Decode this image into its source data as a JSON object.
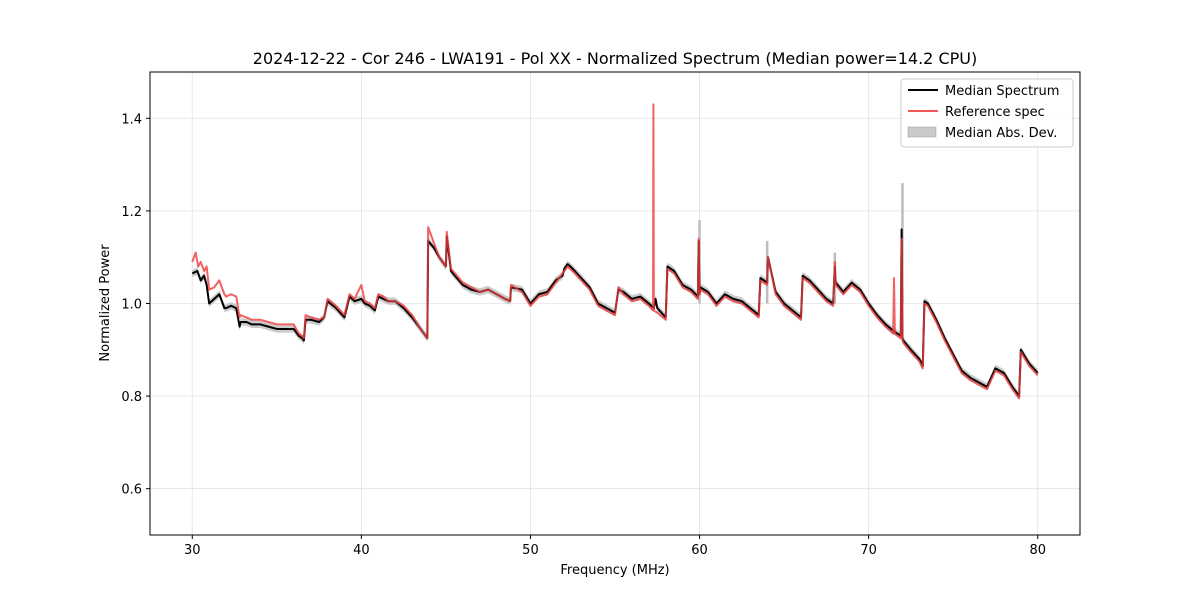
{
  "chart_data": {
    "type": "line",
    "title": "2024-12-22 - Cor 246 - LWA191 - Pol XX - Normalized Spectrum (Median power=14.2 CPU)",
    "xlabel": "Frequency (MHz)",
    "ylabel": "Normalized Power",
    "xlim": [
      27.5,
      82.5
    ],
    "ylim": [
      0.5,
      1.5
    ],
    "xticks": [
      30,
      40,
      50,
      60,
      70,
      80
    ],
    "yticks": [
      0.6,
      0.8,
      1.0,
      1.2,
      1.4
    ],
    "xtick_labels": [
      "30",
      "40",
      "50",
      "60",
      "70",
      "80"
    ],
    "ytick_labels": [
      "0.6",
      "0.8",
      "1.0",
      "1.2",
      "1.4"
    ],
    "grid": true,
    "legend_position": "top-right",
    "colors": {
      "median": "#000000",
      "reference": "#ee3b3b",
      "mad": "#bdbdbd",
      "overlap": "#8b0000"
    },
    "series": [
      {
        "name": "Median Spectrum",
        "legend": "Median Spectrum",
        "x": [
          30.0,
          30.3,
          30.5,
          30.7,
          30.85,
          31.0,
          31.3,
          31.6,
          31.9,
          32.0,
          32.3,
          32.6,
          32.8,
          32.85,
          33.2,
          33.5,
          34.0,
          34.5,
          35.0,
          35.5,
          35.9,
          36.0,
          36.3,
          36.5,
          36.6,
          36.7,
          37.0,
          37.5,
          37.8,
          38.0,
          38.5,
          39.0,
          39.3,
          39.6,
          40.0,
          40.2,
          40.5,
          40.8,
          41.0,
          41.3,
          41.6,
          42.0,
          42.5,
          43.0,
          43.5,
          43.9,
          43.95,
          44.3,
          44.6,
          45.0,
          45.05,
          45.3,
          46.0,
          46.5,
          47.0,
          47.5,
          48.0,
          48.5,
          48.8,
          48.85,
          49.5,
          50.0,
          50.5,
          51.0,
          51.5,
          51.9,
          52.0,
          52.2,
          52.5,
          53.0,
          53.5,
          54.0,
          54.5,
          55.0,
          55.2,
          55.5,
          56.0,
          56.5,
          57.0,
          57.3,
          57.4,
          57.5,
          58.0,
          58.1,
          58.5,
          59.0,
          59.5,
          59.9,
          59.95,
          60.0,
          60.05,
          60.5,
          61.0,
          61.5,
          62.0,
          62.5,
          63.0,
          63.5,
          63.6,
          64.0,
          64.05,
          64.5,
          65.0,
          65.5,
          66.0,
          66.1,
          66.5,
          67.0,
          67.5,
          67.9,
          68.0,
          68.05,
          68.5,
          69.0,
          69.5,
          70.0,
          70.5,
          71.0,
          71.5,
          71.9,
          71.95,
          72.0,
          72.05,
          72.5,
          73.0,
          73.2,
          73.3,
          73.5,
          74.0,
          74.5,
          75.0,
          75.5,
          76.0,
          76.5,
          77.0,
          77.5,
          78.0,
          78.5,
          78.9,
          79.0,
          79.5,
          80.0
        ],
        "values": [
          1.065,
          1.07,
          1.05,
          1.06,
          1.04,
          1.0,
          1.01,
          1.02,
          0.99,
          0.99,
          0.995,
          0.99,
          0.95,
          0.96,
          0.96,
          0.955,
          0.955,
          0.95,
          0.945,
          0.945,
          0.945,
          0.945,
          0.93,
          0.925,
          0.92,
          0.965,
          0.965,
          0.96,
          0.97,
          1.005,
          0.99,
          0.97,
          1.015,
          1.005,
          1.01,
          1.0,
          0.995,
          0.985,
          1.015,
          1.01,
          1.005,
          1.005,
          0.99,
          0.97,
          0.945,
          0.925,
          1.135,
          1.12,
          1.1,
          1.08,
          1.145,
          1.07,
          1.04,
          1.03,
          1.025,
          1.03,
          1.02,
          1.01,
          1.005,
          1.035,
          1.03,
          1.0,
          1.02,
          1.025,
          1.05,
          1.06,
          1.075,
          1.085,
          1.075,
          1.055,
          1.035,
          1.0,
          0.99,
          0.98,
          1.03,
          1.025,
          1.01,
          1.015,
          1.0,
          0.99,
          1.01,
          0.99,
          0.97,
          1.08,
          1.07,
          1.04,
          1.03,
          1.015,
          1.135,
          1.02,
          1.035,
          1.025,
          1.0,
          1.02,
          1.01,
          1.005,
          0.99,
          0.975,
          1.055,
          1.045,
          1.1,
          1.025,
          1.0,
          0.985,
          0.97,
          1.06,
          1.05,
          1.03,
          1.01,
          1.0,
          1.08,
          1.045,
          1.025,
          1.045,
          1.03,
          1.0,
          0.975,
          0.955,
          0.94,
          0.93,
          1.16,
          0.925,
          0.92,
          0.9,
          0.88,
          0.865,
          1.005,
          1.0,
          0.965,
          0.925,
          0.89,
          0.855,
          0.84,
          0.83,
          0.82,
          0.86,
          0.85,
          0.82,
          0.8,
          0.9,
          0.87,
          0.85
        ]
      },
      {
        "name": "Reference spec",
        "legend": "Reference spec",
        "x": [
          30.0,
          30.2,
          30.35,
          30.5,
          30.7,
          30.85,
          31.0,
          31.3,
          31.6,
          31.9,
          32.0,
          32.3,
          32.6,
          32.8,
          32.85,
          33.2,
          33.5,
          34.0,
          34.5,
          35.0,
          35.5,
          35.9,
          36.0,
          36.3,
          36.5,
          36.6,
          36.7,
          37.0,
          37.5,
          37.8,
          38.0,
          38.5,
          39.0,
          39.3,
          39.6,
          40.0,
          40.2,
          40.5,
          40.8,
          41.0,
          41.3,
          41.6,
          42.0,
          42.5,
          43.0,
          43.5,
          43.9,
          43.95,
          44.3,
          44.6,
          45.0,
          45.05,
          45.3,
          46.0,
          46.5,
          47.0,
          47.5,
          48.0,
          48.5,
          48.8,
          48.85,
          49.5,
          50.0,
          50.5,
          51.0,
          51.5,
          51.9,
          52.0,
          52.2,
          52.5,
          53.0,
          53.5,
          54.0,
          54.5,
          55.0,
          55.2,
          55.5,
          56.0,
          56.5,
          57.0,
          57.25,
          57.27,
          57.3,
          57.5,
          58.0,
          58.1,
          58.5,
          59.0,
          59.5,
          59.9,
          59.95,
          60.0,
          60.05,
          60.5,
          61.0,
          61.5,
          62.0,
          62.5,
          63.0,
          63.5,
          63.6,
          64.0,
          64.05,
          64.5,
          65.0,
          65.5,
          66.0,
          66.1,
          66.5,
          67.0,
          67.5,
          67.9,
          68.0,
          68.05,
          68.5,
          69.0,
          69.5,
          70.0,
          70.5,
          71.0,
          71.45,
          71.5,
          71.55,
          71.9,
          71.95,
          72.0,
          72.05,
          72.5,
          73.0,
          73.2,
          73.3,
          73.5,
          74.0,
          74.5,
          75.0,
          75.5,
          76.0,
          76.5,
          77.0,
          77.5,
          78.0,
          78.5,
          78.9,
          79.0,
          79.5,
          80.0
        ],
        "values": [
          1.09,
          1.11,
          1.08,
          1.09,
          1.07,
          1.08,
          1.03,
          1.035,
          1.05,
          1.02,
          1.015,
          1.02,
          1.015,
          0.97,
          0.975,
          0.97,
          0.965,
          0.965,
          0.96,
          0.955,
          0.955,
          0.955,
          0.955,
          0.935,
          0.93,
          0.925,
          0.975,
          0.97,
          0.965,
          0.97,
          1.01,
          0.995,
          0.975,
          1.02,
          1.01,
          1.04,
          1.005,
          1.0,
          0.99,
          1.02,
          1.015,
          1.005,
          1.005,
          0.995,
          0.975,
          0.945,
          0.925,
          1.165,
          1.13,
          1.1,
          1.08,
          1.155,
          1.075,
          1.045,
          1.035,
          1.025,
          1.03,
          1.02,
          1.01,
          1.005,
          1.04,
          1.025,
          0.995,
          1.015,
          1.02,
          1.045,
          1.065,
          1.07,
          1.08,
          1.07,
          1.05,
          1.03,
          0.995,
          0.985,
          0.975,
          1.035,
          1.02,
          1.005,
          1.01,
          0.995,
          0.985,
          1.43,
          0.985,
          0.98,
          0.965,
          1.075,
          1.065,
          1.035,
          1.025,
          1.01,
          1.14,
          1.02,
          1.03,
          1.02,
          0.995,
          1.015,
          1.005,
          1.0,
          0.985,
          0.97,
          1.05,
          1.04,
          1.1,
          1.02,
          0.995,
          0.98,
          0.965,
          1.055,
          1.045,
          1.025,
          1.005,
          0.995,
          1.09,
          1.04,
          1.02,
          1.04,
          1.025,
          0.995,
          0.97,
          0.95,
          0.935,
          1.055,
          0.935,
          0.925,
          1.14,
          0.92,
          0.915,
          0.895,
          0.875,
          0.86,
          1.0,
          0.995,
          0.96,
          0.92,
          0.885,
          0.85,
          0.835,
          0.825,
          0.815,
          0.855,
          0.845,
          0.815,
          0.795,
          0.895,
          0.865,
          0.845
        ]
      }
    ],
    "mad_band": {
      "name": "Median Abs. Dev.",
      "legend": "Median Abs. Dev.",
      "halfwidth": 0.008,
      "spikes": [
        {
          "x": 60.0,
          "high": 1.18
        },
        {
          "x": 64.0,
          "high": 1.135
        },
        {
          "x": 68.0,
          "high": 1.11
        },
        {
          "x": 72.0,
          "high": 1.26
        }
      ]
    }
  }
}
